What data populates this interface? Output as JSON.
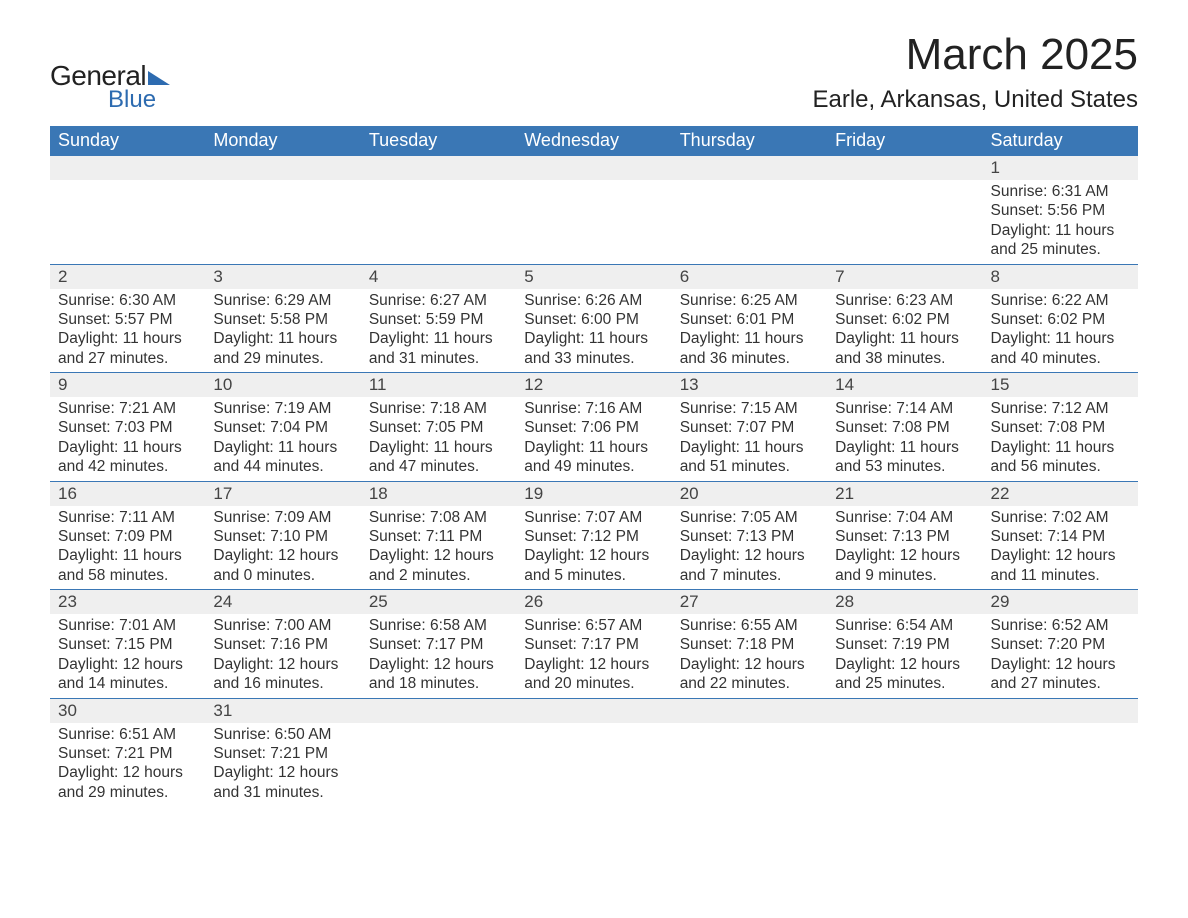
{
  "logo": {
    "line1": "General",
    "line2": "Blue"
  },
  "title": "March 2025",
  "location": "Earle, Arkansas, United States",
  "colors": {
    "header_bg": "#3a77b5",
    "header_text": "#ffffff",
    "daynum_bg": "#efefef",
    "border": "#3a77b5",
    "logo_accent": "#2d6bb0"
  },
  "day_headers": [
    "Sunday",
    "Monday",
    "Tuesday",
    "Wednesday",
    "Thursday",
    "Friday",
    "Saturday"
  ],
  "weeks": [
    {
      "nums": [
        "",
        "",
        "",
        "",
        "",
        "",
        "1"
      ],
      "cells": [
        null,
        null,
        null,
        null,
        null,
        null,
        {
          "sunrise": "Sunrise: 6:31 AM",
          "sunset": "Sunset: 5:56 PM",
          "day1": "Daylight: 11 hours",
          "day2": "and 25 minutes."
        }
      ]
    },
    {
      "nums": [
        "2",
        "3",
        "4",
        "5",
        "6",
        "7",
        "8"
      ],
      "cells": [
        {
          "sunrise": "Sunrise: 6:30 AM",
          "sunset": "Sunset: 5:57 PM",
          "day1": "Daylight: 11 hours",
          "day2": "and 27 minutes."
        },
        {
          "sunrise": "Sunrise: 6:29 AM",
          "sunset": "Sunset: 5:58 PM",
          "day1": "Daylight: 11 hours",
          "day2": "and 29 minutes."
        },
        {
          "sunrise": "Sunrise: 6:27 AM",
          "sunset": "Sunset: 5:59 PM",
          "day1": "Daylight: 11 hours",
          "day2": "and 31 minutes."
        },
        {
          "sunrise": "Sunrise: 6:26 AM",
          "sunset": "Sunset: 6:00 PM",
          "day1": "Daylight: 11 hours",
          "day2": "and 33 minutes."
        },
        {
          "sunrise": "Sunrise: 6:25 AM",
          "sunset": "Sunset: 6:01 PM",
          "day1": "Daylight: 11 hours",
          "day2": "and 36 minutes."
        },
        {
          "sunrise": "Sunrise: 6:23 AM",
          "sunset": "Sunset: 6:02 PM",
          "day1": "Daylight: 11 hours",
          "day2": "and 38 minutes."
        },
        {
          "sunrise": "Sunrise: 6:22 AM",
          "sunset": "Sunset: 6:02 PM",
          "day1": "Daylight: 11 hours",
          "day2": "and 40 minutes."
        }
      ]
    },
    {
      "nums": [
        "9",
        "10",
        "11",
        "12",
        "13",
        "14",
        "15"
      ],
      "cells": [
        {
          "sunrise": "Sunrise: 7:21 AM",
          "sunset": "Sunset: 7:03 PM",
          "day1": "Daylight: 11 hours",
          "day2": "and 42 minutes."
        },
        {
          "sunrise": "Sunrise: 7:19 AM",
          "sunset": "Sunset: 7:04 PM",
          "day1": "Daylight: 11 hours",
          "day2": "and 44 minutes."
        },
        {
          "sunrise": "Sunrise: 7:18 AM",
          "sunset": "Sunset: 7:05 PM",
          "day1": "Daylight: 11 hours",
          "day2": "and 47 minutes."
        },
        {
          "sunrise": "Sunrise: 7:16 AM",
          "sunset": "Sunset: 7:06 PM",
          "day1": "Daylight: 11 hours",
          "day2": "and 49 minutes."
        },
        {
          "sunrise": "Sunrise: 7:15 AM",
          "sunset": "Sunset: 7:07 PM",
          "day1": "Daylight: 11 hours",
          "day2": "and 51 minutes."
        },
        {
          "sunrise": "Sunrise: 7:14 AM",
          "sunset": "Sunset: 7:08 PM",
          "day1": "Daylight: 11 hours",
          "day2": "and 53 minutes."
        },
        {
          "sunrise": "Sunrise: 7:12 AM",
          "sunset": "Sunset: 7:08 PM",
          "day1": "Daylight: 11 hours",
          "day2": "and 56 minutes."
        }
      ]
    },
    {
      "nums": [
        "16",
        "17",
        "18",
        "19",
        "20",
        "21",
        "22"
      ],
      "cells": [
        {
          "sunrise": "Sunrise: 7:11 AM",
          "sunset": "Sunset: 7:09 PM",
          "day1": "Daylight: 11 hours",
          "day2": "and 58 minutes."
        },
        {
          "sunrise": "Sunrise: 7:09 AM",
          "sunset": "Sunset: 7:10 PM",
          "day1": "Daylight: 12 hours",
          "day2": "and 0 minutes."
        },
        {
          "sunrise": "Sunrise: 7:08 AM",
          "sunset": "Sunset: 7:11 PM",
          "day1": "Daylight: 12 hours",
          "day2": "and 2 minutes."
        },
        {
          "sunrise": "Sunrise: 7:07 AM",
          "sunset": "Sunset: 7:12 PM",
          "day1": "Daylight: 12 hours",
          "day2": "and 5 minutes."
        },
        {
          "sunrise": "Sunrise: 7:05 AM",
          "sunset": "Sunset: 7:13 PM",
          "day1": "Daylight: 12 hours",
          "day2": "and 7 minutes."
        },
        {
          "sunrise": "Sunrise: 7:04 AM",
          "sunset": "Sunset: 7:13 PM",
          "day1": "Daylight: 12 hours",
          "day2": "and 9 minutes."
        },
        {
          "sunrise": "Sunrise: 7:02 AM",
          "sunset": "Sunset: 7:14 PM",
          "day1": "Daylight: 12 hours",
          "day2": "and 11 minutes."
        }
      ]
    },
    {
      "nums": [
        "23",
        "24",
        "25",
        "26",
        "27",
        "28",
        "29"
      ],
      "cells": [
        {
          "sunrise": "Sunrise: 7:01 AM",
          "sunset": "Sunset: 7:15 PM",
          "day1": "Daylight: 12 hours",
          "day2": "and 14 minutes."
        },
        {
          "sunrise": "Sunrise: 7:00 AM",
          "sunset": "Sunset: 7:16 PM",
          "day1": "Daylight: 12 hours",
          "day2": "and 16 minutes."
        },
        {
          "sunrise": "Sunrise: 6:58 AM",
          "sunset": "Sunset: 7:17 PM",
          "day1": "Daylight: 12 hours",
          "day2": "and 18 minutes."
        },
        {
          "sunrise": "Sunrise: 6:57 AM",
          "sunset": "Sunset: 7:17 PM",
          "day1": "Daylight: 12 hours",
          "day2": "and 20 minutes."
        },
        {
          "sunrise": "Sunrise: 6:55 AM",
          "sunset": "Sunset: 7:18 PM",
          "day1": "Daylight: 12 hours",
          "day2": "and 22 minutes."
        },
        {
          "sunrise": "Sunrise: 6:54 AM",
          "sunset": "Sunset: 7:19 PM",
          "day1": "Daylight: 12 hours",
          "day2": "and 25 minutes."
        },
        {
          "sunrise": "Sunrise: 6:52 AM",
          "sunset": "Sunset: 7:20 PM",
          "day1": "Daylight: 12 hours",
          "day2": "and 27 minutes."
        }
      ]
    },
    {
      "nums": [
        "30",
        "31",
        "",
        "",
        "",
        "",
        ""
      ],
      "cells": [
        {
          "sunrise": "Sunrise: 6:51 AM",
          "sunset": "Sunset: 7:21 PM",
          "day1": "Daylight: 12 hours",
          "day2": "and 29 minutes."
        },
        {
          "sunrise": "Sunrise: 6:50 AM",
          "sunset": "Sunset: 7:21 PM",
          "day1": "Daylight: 12 hours",
          "day2": "and 31 minutes."
        },
        null,
        null,
        null,
        null,
        null
      ]
    }
  ]
}
